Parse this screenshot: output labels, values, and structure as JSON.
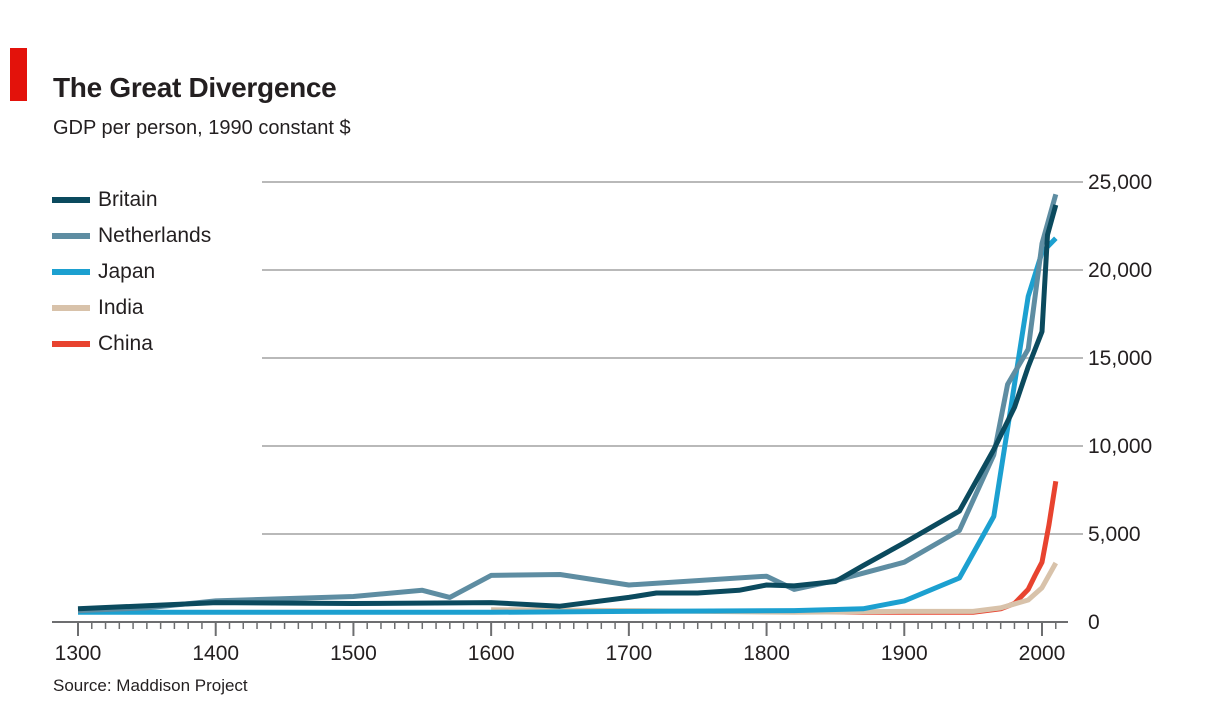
{
  "header": {
    "title": "The Great Divergence",
    "subtitle": "GDP per person, 1990 constant $"
  },
  "footer": {
    "source": "Source: Maddison Project"
  },
  "colors": {
    "accent": "#e3120b",
    "gridline": "#b9b9b9",
    "axis": "#6d6e70"
  },
  "chart_data": {
    "type": "line",
    "title": "The Great Divergence",
    "subtitle": "GDP per person, 1990 constant $",
    "xlabel": "",
    "ylabel": "",
    "xlim": [
      1290,
      2020
    ],
    "ylim": [
      0,
      25000
    ],
    "x_ticks": [
      1300,
      1400,
      1500,
      1600,
      1700,
      1800,
      1900,
      2000
    ],
    "x_tick_labels": [
      "1300",
      "1400",
      "1500",
      "1600",
      "1700",
      "1800",
      "1900",
      "2000"
    ],
    "y_ticks": [
      0,
      5000,
      10000,
      15000,
      20000,
      25000
    ],
    "y_tick_labels": [
      "0",
      "5,000",
      "10,000",
      "15,000",
      "20,000",
      "25,000"
    ],
    "grid": true,
    "legend_position": "top-left",
    "series": [
      {
        "name": "Britain",
        "color": "#0b4a5e",
        "points": [
          [
            1300,
            750
          ],
          [
            1400,
            1100
          ],
          [
            1500,
            1050
          ],
          [
            1600,
            1100
          ],
          [
            1650,
            900
          ],
          [
            1700,
            1400
          ],
          [
            1720,
            1650
          ],
          [
            1750,
            1650
          ],
          [
            1780,
            1800
          ],
          [
            1800,
            2100
          ],
          [
            1820,
            2050
          ],
          [
            1850,
            2300
          ],
          [
            1870,
            3200
          ],
          [
            1900,
            4500
          ],
          [
            1940,
            6300
          ],
          [
            1965,
            9800
          ],
          [
            1980,
            12200
          ],
          [
            1990,
            14500
          ],
          [
            2000,
            16500
          ],
          [
            2004,
            22000
          ],
          [
            2010,
            23700
          ]
        ]
      },
      {
        "name": "Netherlands",
        "color": "#5e8da2",
        "points": [
          [
            1300,
            650
          ],
          [
            1350,
            800
          ],
          [
            1400,
            1200
          ],
          [
            1500,
            1450
          ],
          [
            1550,
            1800
          ],
          [
            1570,
            1400
          ],
          [
            1600,
            2650
          ],
          [
            1650,
            2700
          ],
          [
            1700,
            2100
          ],
          [
            1800,
            2600
          ],
          [
            1820,
            1850
          ],
          [
            1850,
            2350
          ],
          [
            1900,
            3400
          ],
          [
            1940,
            5200
          ],
          [
            1965,
            9500
          ],
          [
            1975,
            13500
          ],
          [
            1990,
            15500
          ],
          [
            2000,
            21500
          ],
          [
            2010,
            24300
          ]
        ]
      },
      {
        "name": "Japan",
        "color": "#1ca0d0",
        "points": [
          [
            1300,
            550
          ],
          [
            1600,
            550
          ],
          [
            1700,
            600
          ],
          [
            1820,
            650
          ],
          [
            1870,
            750
          ],
          [
            1900,
            1200
          ],
          [
            1940,
            2500
          ],
          [
            1965,
            6000
          ],
          [
            1975,
            11000
          ],
          [
            1990,
            18500
          ],
          [
            2000,
            21000
          ],
          [
            2010,
            21800
          ]
        ]
      },
      {
        "name": "India",
        "color": "#d8c2aa",
        "points": [
          [
            1600,
            700
          ],
          [
            1700,
            650
          ],
          [
            1820,
            550
          ],
          [
            1900,
            600
          ],
          [
            1950,
            600
          ],
          [
            1970,
            800
          ],
          [
            1990,
            1250
          ],
          [
            2000,
            1950
          ],
          [
            2010,
            3350
          ]
        ]
      },
      {
        "name": "China",
        "color": "#e8432f",
        "points": [
          [
            1820,
            600
          ],
          [
            1870,
            550
          ],
          [
            1900,
            550
          ],
          [
            1950,
            550
          ],
          [
            1970,
            750
          ],
          [
            1980,
            1050
          ],
          [
            1990,
            1850
          ],
          [
            1995,
            2650
          ],
          [
            2000,
            3400
          ],
          [
            2005,
            5500
          ],
          [
            2010,
            8000
          ]
        ]
      }
    ]
  }
}
